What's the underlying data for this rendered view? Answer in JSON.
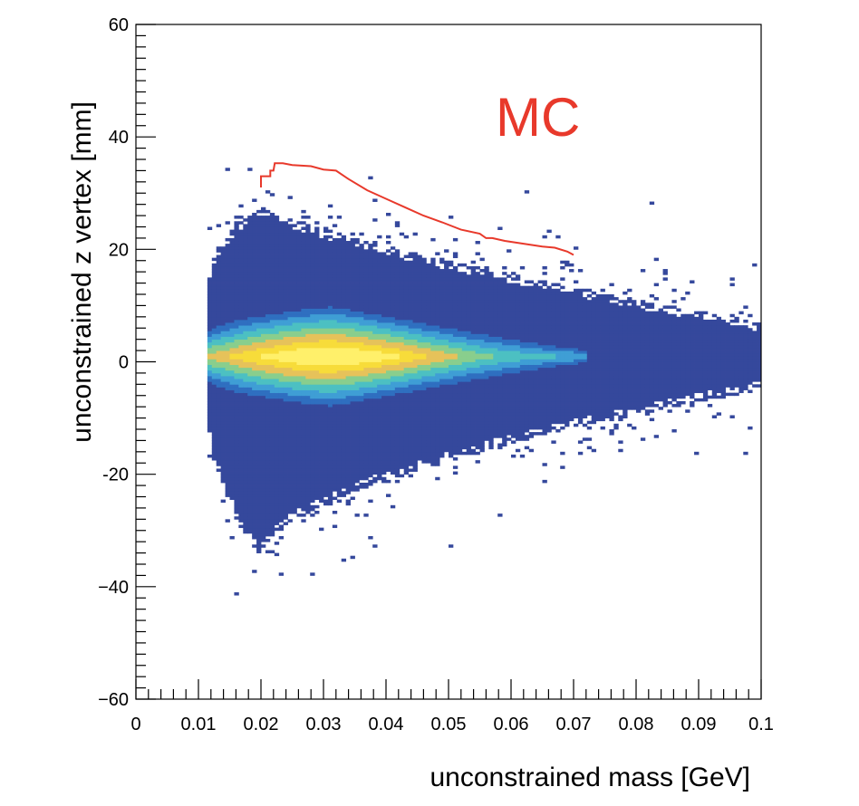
{
  "chart_data": {
    "type": "heatmap",
    "title": "",
    "annotation": {
      "text": "MC",
      "color": "#e8392b"
    },
    "xlabel": "unconstrained mass [GeV]",
    "ylabel": "unconstrained z vertex [mm]",
    "xlim": [
      0,
      0.1
    ],
    "ylim": [
      -60,
      60
    ],
    "xticks": [
      0,
      0.01,
      0.02,
      0.03,
      0.04,
      0.05,
      0.06,
      0.07,
      0.08,
      0.09,
      0.1
    ],
    "xtick_labels": [
      "0",
      "0.01",
      "0.02",
      "0.03",
      "0.04",
      "0.05",
      "0.06",
      "0.07",
      "0.08",
      "0.09",
      "0.1"
    ],
    "yticks": [
      -60,
      -40,
      -20,
      0,
      20,
      40,
      60
    ],
    "ytick_labels": [
      "−60",
      "−40",
      "-20",
      "0",
      "20",
      "40",
      "60"
    ],
    "grid": false,
    "colormap": [
      "#35489c",
      "#2f6fc0",
      "#3f9ed5",
      "#4cc0c2",
      "#89ce8d",
      "#e6c25a",
      "#f7dc3a",
      "#fff06a"
    ],
    "density_model": {
      "mass_onset": 0.0115,
      "peak_mass": 0.031,
      "core_z_center": 1,
      "core_z_halfwidth_at_peak": 10,
      "core_z_halfwidth_at_0p07": 2,
      "envelope_upper_at_0p02": 28,
      "envelope_lower_at_0p02": -35,
      "envelope_upper_at_0p1": 7,
      "envelope_lower_at_0p1": -5
    },
    "series": [
      {
        "type": "line",
        "color": "#e8392b",
        "x": [
          0.02,
          0.02,
          0.0215,
          0.0215,
          0.022,
          0.0222,
          0.0235,
          0.025,
          0.028,
          0.03,
          0.032,
          0.034,
          0.037,
          0.04,
          0.043,
          0.046,
          0.049,
          0.052,
          0.055,
          0.056,
          0.057,
          0.059,
          0.062,
          0.065,
          0.067,
          0.069,
          0.07
        ],
        "y": [
          31.0,
          33.0,
          33.0,
          34.0,
          34.0,
          35.3,
          35.3,
          35.0,
          34.8,
          34.2,
          34.0,
          32.5,
          30.5,
          29.0,
          27.5,
          26.0,
          24.8,
          23.5,
          22.8,
          22.0,
          22.0,
          21.5,
          21.0,
          20.5,
          20.3,
          19.6,
          19.0
        ]
      }
    ]
  }
}
